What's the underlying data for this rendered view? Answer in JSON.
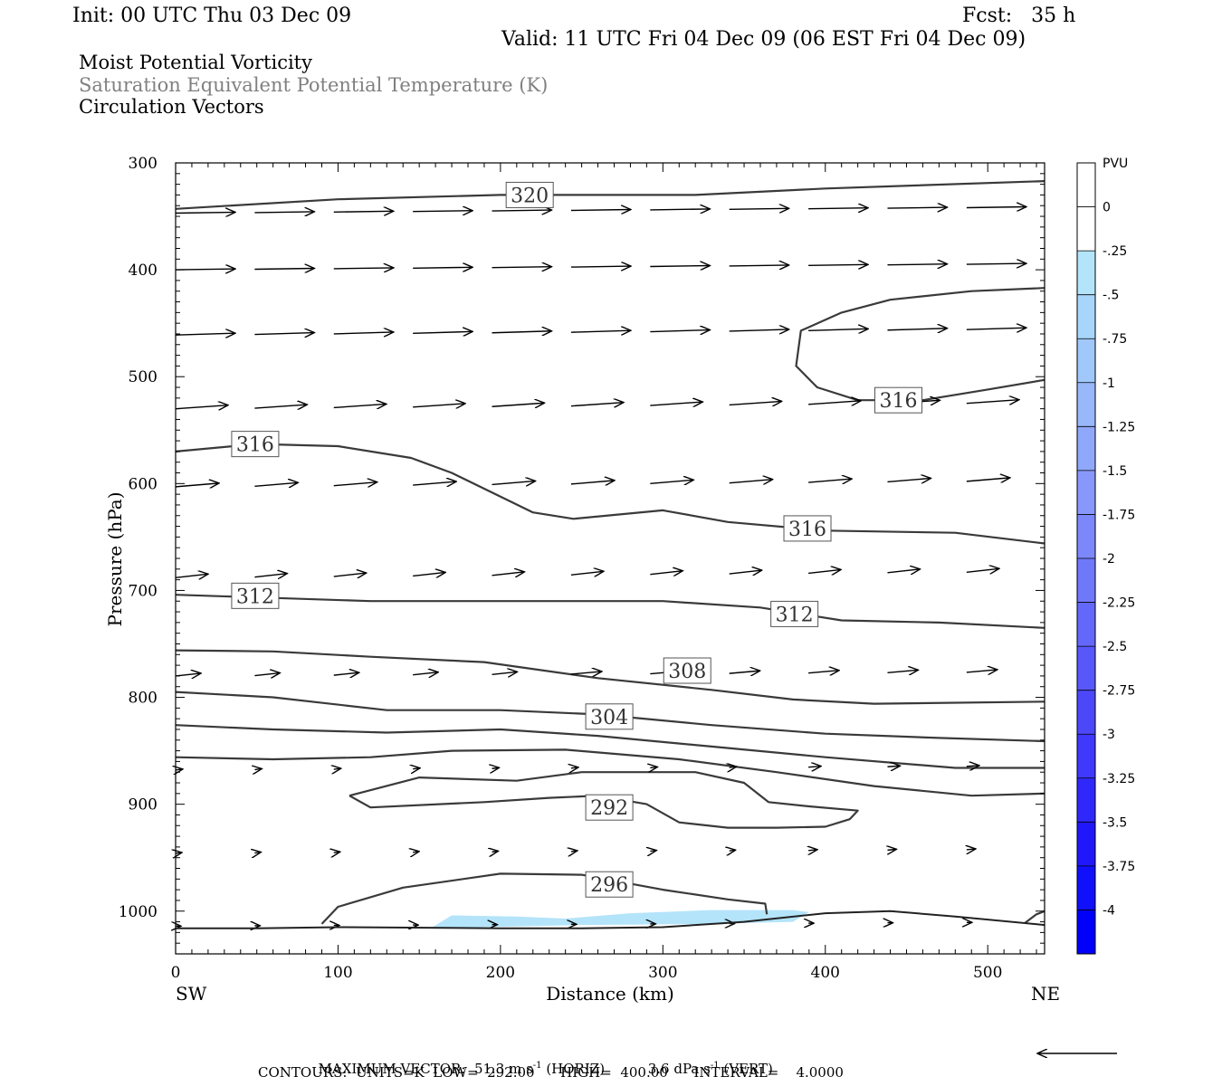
{
  "header": {
    "init": "Init: 00 UTC Thu 03 Dec 09",
    "fcst": "Fcst:   35 h",
    "valid": "Valid: 11 UTC Fri 04 Dec 09 (06 EST Fri 04 Dec 09)",
    "field1": "Moist Potential Vorticity",
    "field2": "Saturation Equivalent Potential Temperature (K)",
    "field3": "Circulation Vectors"
  },
  "footer": {
    "max_vector_label": "MAXIMUM VECTOR:",
    "max_horiz": "51.3 m s",
    "max_horiz_exp": "-1",
    "max_horiz_tag": "(HORIZ)",
    "max_vert": "3.6 dPa s",
    "max_vert_exp": "-1",
    "max_vert_tag": "(VERT)",
    "contours": "CONTOURS:  UNITS=K  LOW=  292.00      HIGH=  400.00      INTERVAL=    4.0000"
  },
  "chart_data": {
    "type": "cross-section",
    "xlabel": "Distance (km)",
    "ylabel": "Pressure (hPa)",
    "xlim": [
      0,
      535
    ],
    "ylim": [
      1040,
      300
    ],
    "x_ticks": [
      0,
      100,
      200,
      300,
      400,
      500
    ],
    "y_ticks": [
      300,
      400,
      500,
      600,
      700,
      800,
      900,
      1000
    ],
    "x_end_labels": {
      "left": "SW",
      "right": "NE"
    },
    "colorbar": {
      "title": "PVU",
      "ticks": [
        "0",
        "-.25",
        "-.5",
        "-.75",
        "-1",
        "-1.25",
        "-1.5",
        "-1.75",
        "-2",
        "-2.25",
        "-2.5",
        "-2.75",
        "-3",
        "-3.25",
        "-3.5",
        "-3.75",
        "-4"
      ],
      "colors": [
        "#ffffff",
        "#ffffff",
        "#b4e4fa",
        "#a8d6fa",
        "#a0c8fa",
        "#98b8fa",
        "#90a8fa",
        "#8898fa",
        "#7c88fa",
        "#7078fa",
        "#6468fa",
        "#5858fa",
        "#4c48fa",
        "#4038fa",
        "#3028fa",
        "#2018fa",
        "#1010fa",
        "#0000fa"
      ]
    },
    "theta_contours": [
      {
        "label": "320",
        "points": [
          [
            0,
            343
          ],
          [
            100,
            334
          ],
          [
            200,
            330
          ],
          [
            320,
            330
          ],
          [
            400,
            324
          ],
          [
            535,
            317
          ]
        ],
        "label_at": [
          218,
          330
        ]
      },
      {
        "label": "316",
        "points": [
          [
            0,
            570
          ],
          [
            50,
            563
          ],
          [
            100,
            565
          ],
          [
            145,
            576
          ],
          [
            170,
            590
          ],
          [
            220,
            627
          ],
          [
            245,
            633
          ],
          [
            300,
            625
          ],
          [
            340,
            636
          ],
          [
            400,
            644
          ],
          [
            480,
            646
          ],
          [
            535,
            656
          ]
        ],
        "label_at": [
          49,
          563
        ]
      },
      {
        "label": "316",
        "points": [
          [
            535,
            417
          ],
          [
            490,
            420
          ],
          [
            440,
            428
          ],
          [
            410,
            440
          ],
          [
            385,
            457
          ],
          [
            382,
            490
          ],
          [
            395,
            510
          ],
          [
            420,
            522
          ],
          [
            460,
            522
          ],
          [
            500,
            512
          ],
          [
            535,
            503
          ]
        ],
        "label_at": [
          445,
          522
        ]
      },
      {
        "label": "316",
        "points": [
          [
            535,
            417
          ]
        ],
        "label_at": [
          389,
          642
        ]
      },
      {
        "label": "312",
        "points": [
          [
            0,
            704
          ],
          [
            60,
            707
          ],
          [
            120,
            710
          ],
          [
            200,
            710
          ],
          [
            300,
            710
          ],
          [
            360,
            716
          ],
          [
            410,
            728
          ],
          [
            470,
            730
          ],
          [
            535,
            735
          ]
        ],
        "label_at": [
          49,
          705
        ]
      },
      {
        "label": "312",
        "points": [
          [
            535,
            735
          ]
        ],
        "label_at": [
          381,
          722
        ]
      },
      {
        "label": "308",
        "points": [
          [
            0,
            756
          ],
          [
            60,
            757
          ],
          [
            120,
            762
          ],
          [
            190,
            767
          ],
          [
            260,
            782
          ],
          [
            330,
            793
          ],
          [
            380,
            802
          ],
          [
            430,
            806
          ],
          [
            535,
            804
          ]
        ],
        "label_at": [
          315,
          775
        ]
      },
      {
        "label": "304",
        "points": [
          [
            0,
            795
          ],
          [
            60,
            800
          ],
          [
            130,
            812
          ],
          [
            200,
            812
          ],
          [
            260,
            816
          ],
          [
            330,
            826
          ],
          [
            400,
            834
          ],
          [
            470,
            838
          ],
          [
            535,
            841
          ]
        ],
        "label_at": [
          267,
          818
        ]
      },
      {
        "label": "",
        "points": [
          [
            0,
            826
          ],
          [
            60,
            830
          ],
          [
            130,
            833
          ],
          [
            200,
            830
          ],
          [
            260,
            836
          ],
          [
            330,
            846
          ],
          [
            400,
            856
          ],
          [
            480,
            866
          ],
          [
            535,
            866
          ]
        ]
      },
      {
        "label": "",
        "points": [
          [
            0,
            856
          ],
          [
            60,
            858
          ],
          [
            120,
            856
          ],
          [
            170,
            850
          ],
          [
            240,
            849
          ],
          [
            310,
            858
          ],
          [
            370,
            870
          ],
          [
            430,
            883
          ],
          [
            490,
            892
          ],
          [
            535,
            890
          ]
        ]
      },
      {
        "label": "292",
        "points": [
          [
            107,
            892
          ],
          [
            120,
            903
          ],
          [
            190,
            898
          ],
          [
            230,
            894
          ],
          [
            260,
            892
          ],
          [
            290,
            900
          ],
          [
            310,
            917
          ],
          [
            340,
            922
          ],
          [
            370,
            922
          ],
          [
            400,
            921
          ],
          [
            415,
            914
          ],
          [
            420,
            906
          ],
          [
            390,
            902
          ],
          [
            365,
            898
          ],
          [
            350,
            880
          ],
          [
            320,
            870
          ],
          [
            250,
            870
          ],
          [
            210,
            878
          ],
          [
            150,
            875
          ],
          [
            107,
            892
          ]
        ],
        "label_at": [
          267,
          903
        ]
      },
      {
        "label": "296",
        "points": [
          [
            90,
            1012
          ],
          [
            100,
            996
          ],
          [
            140,
            978
          ],
          [
            200,
            965
          ],
          [
            250,
            966
          ],
          [
            300,
            980
          ],
          [
            340,
            989
          ],
          [
            363,
            993
          ],
          [
            364,
            1003
          ]
        ],
        "label_at": [
          267,
          975
        ]
      },
      {
        "label": "",
        "points": [
          [
            523,
            1011
          ],
          [
            530,
            1003
          ],
          [
            535,
            1000
          ]
        ]
      }
    ],
    "terrain": [
      [
        0,
        1016
      ],
      [
        50,
        1016
      ],
      [
        100,
        1015
      ],
      [
        200,
        1016
      ],
      [
        250,
        1016
      ],
      [
        300,
        1015
      ],
      [
        350,
        1010
      ],
      [
        400,
        1002
      ],
      [
        440,
        1000
      ],
      [
        480,
        1005
      ],
      [
        535,
        1013
      ]
    ],
    "pv_shading": [
      [
        157,
        1016
      ],
      [
        170,
        1004
      ],
      [
        210,
        1005
      ],
      [
        240,
        1007
      ],
      [
        280,
        1002
      ],
      [
        330,
        999
      ],
      [
        380,
        999
      ],
      [
        390,
        1001
      ],
      [
        380,
        1010
      ],
      [
        330,
        1012
      ],
      [
        250,
        1013
      ],
      [
        157,
        1016
      ]
    ]
  }
}
